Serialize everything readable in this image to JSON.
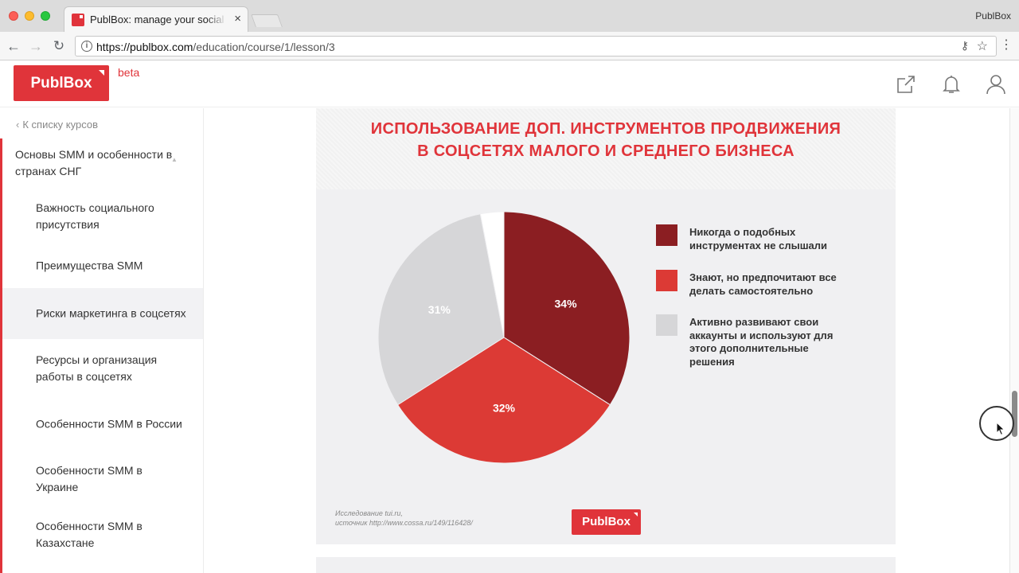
{
  "browser": {
    "tab_title": "PublBox: manage your social media",
    "tab_close": "×",
    "user_name": "PublBox",
    "url_host": "https://publbox.com",
    "url_path": "/education/course/1/lesson/3"
  },
  "header": {
    "logo_text": "PublBox",
    "beta_label": "beta",
    "icons": [
      "share-icon",
      "bell-icon",
      "user-icon"
    ]
  },
  "sidebar": {
    "back_link": "К списку курсов",
    "section_title": "Основы SMM и особенности в странах СНГ",
    "lessons": [
      {
        "label": "Важность социального присутствия",
        "active": false
      },
      {
        "label": "Преимущества SMM",
        "active": false
      },
      {
        "label": "Риски маркетинга в соцсетях",
        "active": true
      },
      {
        "label": "Ресурсы и организация работы в соцсетях",
        "active": false
      },
      {
        "label": "Особенности SMM в России",
        "active": false
      },
      {
        "label": "Особенности SMM в Украине",
        "active": false
      },
      {
        "label": "Особенности SMM в Казахстане",
        "active": false
      }
    ]
  },
  "slide": {
    "title_line1": "ИСПОЛЬЗОВАНИЕ ДОП. ИНСТРУМЕНТОВ ПРОДВИЖЕНИЯ",
    "title_line2": "В СОЦСЕТЯХ МАЛОГО И СРЕДНЕГО БИЗНЕСА",
    "source_line1": "Исследование tui.ru,",
    "source_line2": "источник http://www.cossa.ru/149/116428/",
    "logo_text": "PublBox"
  },
  "chart_data": {
    "type": "pie",
    "title": "ИСПОЛЬЗОВАНИЕ ДОП. ИНСТРУМЕНТОВ ПРОДВИЖЕНИЯ В СОЦСЕТЯХ МАЛОГО И СРЕДНЕГО БИЗНЕСА",
    "slices": [
      {
        "label": "Никогда о подобных инструментах не слышали",
        "value": 34,
        "value_label": "34%",
        "color": "#8b1e22"
      },
      {
        "label": "Знают, но предпочитают все делать самостоятельно",
        "value": 32,
        "value_label": "32%",
        "color": "#dc3a35"
      },
      {
        "label": "Активно развивают свои аккаунты и используют для этого дополнительные решения",
        "value": 31,
        "value_label": "31%",
        "color": "#d6d6d8"
      },
      {
        "label": "",
        "value": 3,
        "value_label": "",
        "color": "#ffffff"
      }
    ],
    "legend_position": "right"
  }
}
